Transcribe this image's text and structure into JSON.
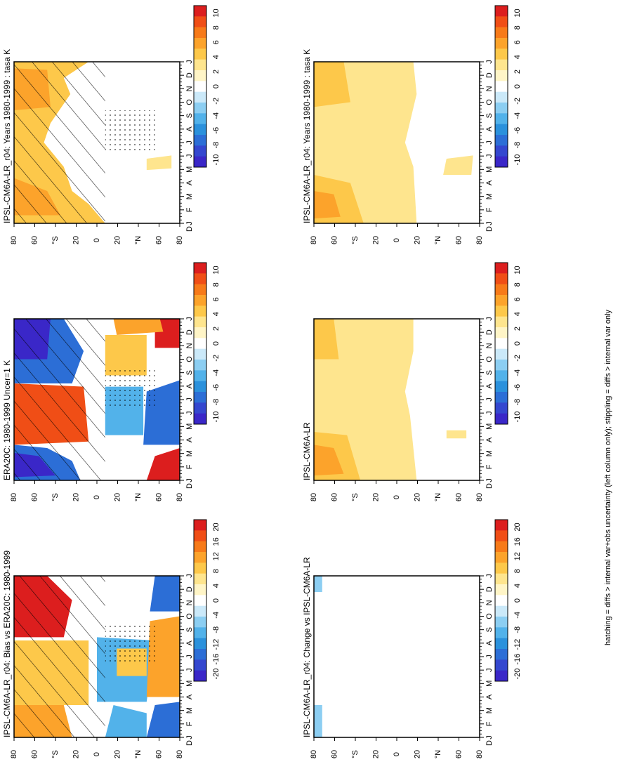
{
  "figure": {
    "footnote": "hatching = diffs > internal var+obs uncertainty (left column only); stippling = diffs > internal var only"
  },
  "chart_data": [
    {
      "type": "heatmap",
      "title": "IPSL-CM6A-LR_r04: Years 1980-1999 : tasa K",
      "column": "left",
      "row": 1,
      "x_ticks": [
        "J",
        "F",
        "M",
        "A",
        "M",
        "J",
        "J",
        "A",
        "S",
        "O",
        "N",
        "D",
        "J"
      ],
      "y_ticks": [
        "80",
        "60",
        "°S",
        "20",
        "0",
        "20",
        "°N",
        "60",
        "80"
      ],
      "y_ticks_start_label": "D",
      "colorbar_labels": [
        "10",
        "8",
        "6",
        "4",
        "2",
        "0",
        "-2",
        "-4",
        "-6",
        "-8",
        "-10"
      ],
      "colorbar_colors": [
        "#dc1e1e",
        "#f04e16",
        "#f77a19",
        "#fca32b",
        "#fdc84a",
        "#fee58e",
        "#fff5c7",
        "#ffffff",
        "#cbe9f9",
        "#8ccef2",
        "#52b2ea",
        "#2b91dc",
        "#2c6ed6",
        "#3447cf",
        "#3a27c8"
      ],
      "hatched": true,
      "stippled": true,
      "panel_key": "p1"
    },
    {
      "type": "heatmap",
      "title": "IPSL-CM6A-LR_r04: Years 1980-1999 : tasa K",
      "column": "right",
      "row": 1,
      "x_ticks": [
        "J",
        "F",
        "M",
        "A",
        "M",
        "J",
        "J",
        "A",
        "S",
        "O",
        "N",
        "D",
        "J"
      ],
      "y_ticks": [
        "80",
        "60",
        "°S",
        "20",
        "0",
        "20",
        "°N",
        "60",
        "80"
      ],
      "y_ticks_start_label": "D",
      "colorbar_labels": [
        "10",
        "8",
        "6",
        "4",
        "2",
        "0",
        "-2",
        "-4",
        "-6",
        "-8",
        "-10"
      ],
      "colorbar_colors": [
        "#dc1e1e",
        "#f04e16",
        "#f77a19",
        "#fca32b",
        "#fdc84a",
        "#fee58e",
        "#fff5c7",
        "#ffffff",
        "#cbe9f9",
        "#8ccef2",
        "#52b2ea",
        "#2b91dc",
        "#2c6ed6",
        "#3447cf",
        "#3a27c8"
      ],
      "hatched": false,
      "stippled": false,
      "panel_key": "p2"
    },
    {
      "type": "heatmap",
      "title": "ERA20C: 1980-1999 Uncer=1 K",
      "column": "left",
      "row": 2,
      "x_ticks": [
        "J",
        "F",
        "M",
        "A",
        "M",
        "J",
        "J",
        "A",
        "S",
        "O",
        "N",
        "D",
        "J"
      ],
      "y_ticks": [
        "80",
        "60",
        "°S",
        "20",
        "0",
        "20",
        "°N",
        "60",
        "80"
      ],
      "y_ticks_start_label": "D",
      "colorbar_labels": [
        "10",
        "8",
        "6",
        "4",
        "2",
        "0",
        "-2",
        "-4",
        "-6",
        "-8",
        "-10"
      ],
      "colorbar_colors": [
        "#dc1e1e",
        "#f04e16",
        "#f77a19",
        "#fca32b",
        "#fdc84a",
        "#fee58e",
        "#fff5c7",
        "#ffffff",
        "#cbe9f9",
        "#8ccef2",
        "#52b2ea",
        "#2b91dc",
        "#2c6ed6",
        "#3447cf",
        "#3a27c8"
      ],
      "hatched": true,
      "stippled": true,
      "panel_key": "p3"
    },
    {
      "type": "heatmap",
      "title": "IPSL-CM6A-LR",
      "column": "right",
      "row": 2,
      "x_ticks": [
        "J",
        "F",
        "M",
        "A",
        "M",
        "J",
        "J",
        "A",
        "S",
        "O",
        "N",
        "D",
        "J"
      ],
      "y_ticks": [
        "80",
        "60",
        "°S",
        "20",
        "0",
        "20",
        "°N",
        "60",
        "80"
      ],
      "y_ticks_start_label": "D",
      "colorbar_labels": [
        "10",
        "8",
        "6",
        "4",
        "2",
        "0",
        "-2",
        "-4",
        "-6",
        "-8",
        "-10"
      ],
      "colorbar_colors": [
        "#dc1e1e",
        "#f04e16",
        "#f77a19",
        "#fca32b",
        "#fdc84a",
        "#fee58e",
        "#fff5c7",
        "#ffffff",
        "#cbe9f9",
        "#8ccef2",
        "#52b2ea",
        "#2b91dc",
        "#2c6ed6",
        "#3447cf",
        "#3a27c8"
      ],
      "hatched": false,
      "stippled": false,
      "panel_key": "p4"
    },
    {
      "type": "heatmap",
      "title": "IPSL-CM6A-LR_r04: Bias vs ERA20C: 1980-1999",
      "column": "left",
      "row": 3,
      "x_ticks": [
        "J",
        "F",
        "M",
        "A",
        "M",
        "J",
        "J",
        "A",
        "S",
        "O",
        "N",
        "D",
        "J"
      ],
      "y_ticks": [
        "80",
        "60",
        "°S",
        "20",
        "0",
        "20",
        "°N",
        "60",
        "80"
      ],
      "y_ticks_start_label": "D",
      "colorbar_labels": [
        "20",
        "16",
        "12",
        "8",
        "4",
        "0",
        "-4",
        "-8",
        "-12",
        "-16",
        "-20"
      ],
      "colorbar_colors": [
        "#dc1e1e",
        "#f04e16",
        "#f77a19",
        "#fca32b",
        "#fdc84a",
        "#fee58e",
        "#fff5c7",
        "#ffffff",
        "#cbe9f9",
        "#8ccef2",
        "#52b2ea",
        "#2b91dc",
        "#2c6ed6",
        "#3447cf",
        "#3a27c8"
      ],
      "hatched": true,
      "stippled": true,
      "panel_key": "p5"
    },
    {
      "type": "heatmap",
      "title": "IPSL-CM6A-LR_r04: Change vs IPSL-CM6A-LR",
      "column": "right",
      "row": 3,
      "x_ticks": [
        "J",
        "F",
        "M",
        "A",
        "M",
        "J",
        "J",
        "A",
        "S",
        "O",
        "N",
        "D",
        "J"
      ],
      "y_ticks": [
        "80",
        "60",
        "°S",
        "20",
        "0",
        "20",
        "°N",
        "60",
        "80"
      ],
      "y_ticks_start_label": "D",
      "colorbar_labels": [
        "20",
        "16",
        "12",
        "8",
        "4",
        "0",
        "-4",
        "-8",
        "-12",
        "-16",
        "-20"
      ],
      "colorbar_colors": [
        "#dc1e1e",
        "#f04e16",
        "#f77a19",
        "#fca32b",
        "#fdc84a",
        "#fee58e",
        "#fff5c7",
        "#ffffff",
        "#cbe9f9",
        "#8ccef2",
        "#52b2ea",
        "#2b91dc",
        "#2c6ed6",
        "#3447cf",
        "#3a27c8"
      ],
      "hatched": false,
      "stippled": false,
      "panel_key": "p6"
    }
  ]
}
